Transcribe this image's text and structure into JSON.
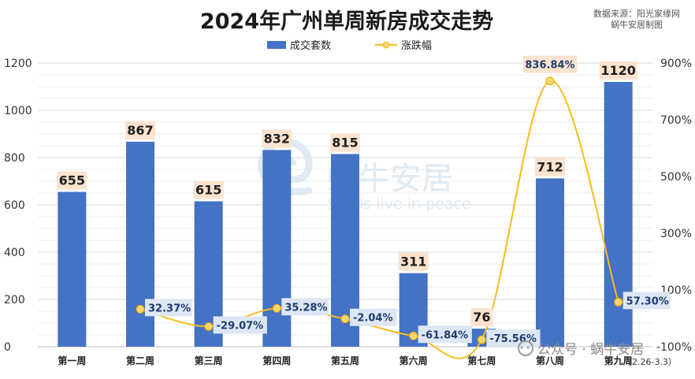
{
  "chart_data": {
    "type": "bar+line",
    "title": "2024年广州单周新房成交走势",
    "source_lines": [
      "数据来源：阳光家缘网",
      "蜗牛安居制图"
    ],
    "categories": [
      "第一周",
      "第二周",
      "第三周",
      "第四周",
      "第五周",
      "第六周",
      "第七周",
      "第八周",
      "第九周"
    ],
    "series": [
      {
        "name": "成交套数",
        "type": "bar",
        "axis": "left",
        "color": "#4472c4",
        "values": [
          655,
          867,
          615,
          832,
          815,
          311,
          76,
          712,
          1120
        ],
        "labels": [
          "655",
          "867",
          "615",
          "832",
          "815",
          "311",
          "76",
          "712",
          "1120"
        ]
      },
      {
        "name": "涨跌幅",
        "type": "line",
        "axis": "right",
        "color": "#f5bd1f",
        "values": [
          null,
          32.37,
          -29.07,
          35.28,
          -2.04,
          -61.84,
          -75.56,
          836.84,
          57.3
        ],
        "labels": [
          null,
          "32.37%",
          "-29.07%",
          "35.28%",
          "-2.04%",
          "-61.84%",
          "-75.56%",
          "836.84%",
          "57.30%"
        ]
      }
    ],
    "y_left": {
      "min": 0,
      "max": 1200,
      "ticks": [
        "0",
        "200",
        "400",
        "600",
        "800",
        "1000",
        "1200"
      ]
    },
    "y_right": {
      "min": -100,
      "max": 900,
      "ticks": [
        "-100%",
        "100%",
        "300%",
        "500%",
        "700%",
        "900%"
      ]
    },
    "legend_position": "top-center",
    "grid": true
  },
  "watermark": {
    "brand": "蜗牛安居",
    "slogan": "Snails live in peace"
  },
  "footer": {
    "account": "公众号 · 蜗牛安居",
    "date_range": "（2.26-3.3）"
  }
}
